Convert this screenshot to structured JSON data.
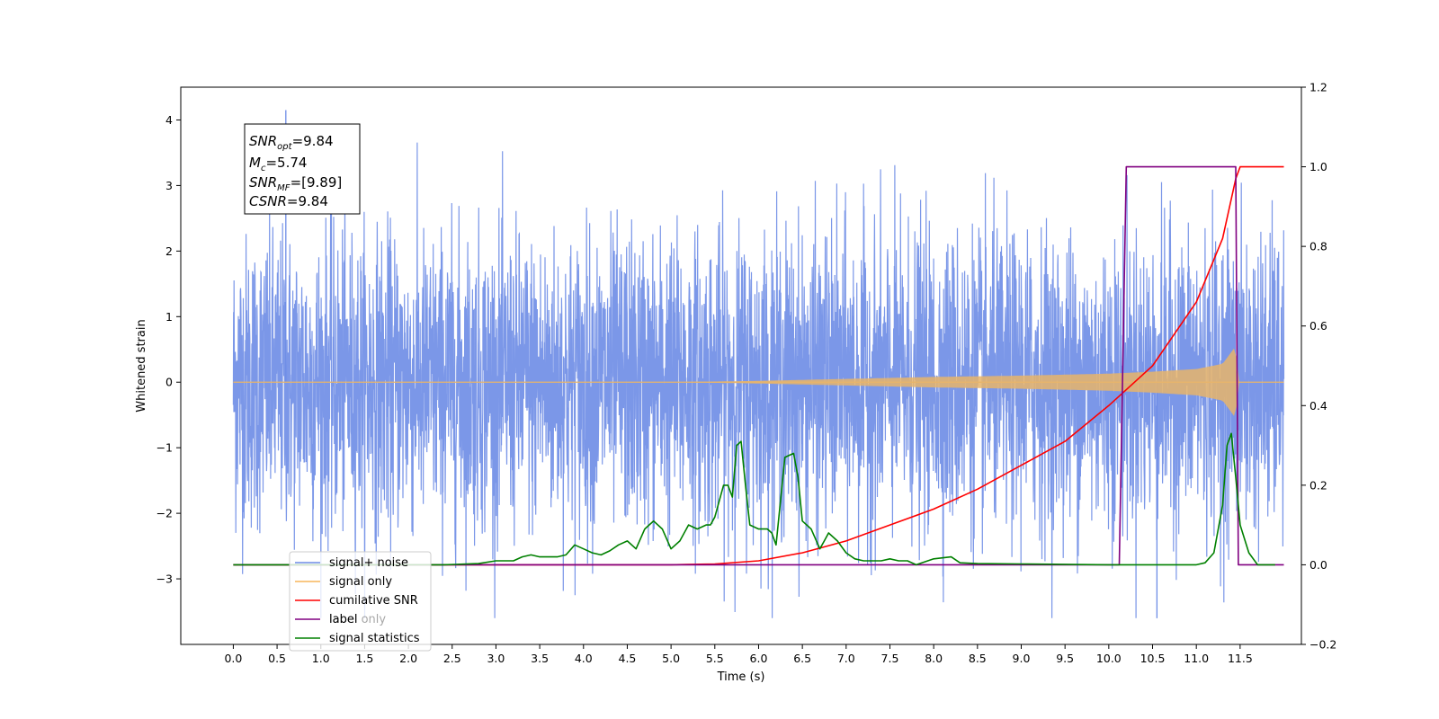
{
  "chart_data": {
    "type": "line",
    "xlabel": "Time (s)",
    "ylabel": "Whitened strain",
    "xlim": [
      -0.6,
      12.2
    ],
    "ylim": [
      -4.0,
      4.5
    ],
    "y2lim": [
      -0.2,
      1.2
    ],
    "xticks": [
      0.0,
      0.5,
      1.0,
      1.5,
      2.0,
      2.5,
      3.0,
      3.5,
      4.0,
      4.5,
      5.0,
      5.5,
      6.0,
      6.5,
      7.0,
      7.5,
      8.0,
      8.5,
      9.0,
      9.5,
      10.0,
      10.5,
      11.0,
      11.5
    ],
    "xtick_labels": [
      "0.0",
      "0.5",
      "1.0",
      "1.5",
      "2.0",
      "2.5",
      "3.0",
      "3.5",
      "4.0",
      "4.5",
      "5.0",
      "5.5",
      "6.0",
      "6.5",
      "7.0",
      "7.5",
      "8.0",
      "8.5",
      "9.0",
      "9.5",
      "10.0",
      "10.5",
      "11.0",
      "11.5"
    ],
    "yticks": [
      -3,
      -2,
      -1,
      0,
      1,
      2,
      3,
      4
    ],
    "ytick_labels": [
      "−3",
      "−2",
      "−1",
      "0",
      "1",
      "2",
      "3",
      "4"
    ],
    "y2ticks": [
      -0.2,
      0.0,
      0.2,
      0.4,
      0.6,
      0.8,
      1.0,
      1.2
    ],
    "y2tick_labels": [
      "−0.2",
      "0.0",
      "0.2",
      "0.4",
      "0.6",
      "0.8",
      "1.0",
      "1.2"
    ],
    "annotation": {
      "lines": [
        {
          "base": "SNR",
          "sub": "opt",
          "rest": "=9.84"
        },
        {
          "base": "M",
          "sub": "c",
          "rest": "=5.74"
        },
        {
          "base": "SNR",
          "sub": "MF",
          "rest": "=[9.89]"
        },
        {
          "base": "CSNR",
          "sub": "",
          "rest": "=9.84"
        }
      ]
    },
    "legend": {
      "location": "lower-left",
      "entries": [
        {
          "label": "signal+ noise",
          "color": "#6d8ce6"
        },
        {
          "label": "signal only",
          "color": "#f7b55a"
        },
        {
          "label": "cumilative SNR",
          "color": "#ff0000"
        },
        {
          "label": "label",
          "color": "#800080"
        },
        {
          "label": "label only",
          "color": "#800080"
        },
        {
          "label": "signal statistics",
          "color": "#008000"
        }
      ]
    },
    "series": [
      {
        "name": "signal+ noise",
        "axis": "left",
        "color": "#6d8ce6",
        "kind": "noise-band",
        "x_range": [
          0.0,
          12.0
        ],
        "typical_envelope": [
          -1.8,
          1.8
        ],
        "min": -3.6,
        "max": 4.15
      },
      {
        "name": "signal only",
        "axis": "left",
        "color": "#e8b46a",
        "kind": "chirp-envelope",
        "x": [
          0.0,
          5.0,
          6.0,
          7.0,
          8.0,
          9.0,
          10.0,
          10.5,
          11.0,
          11.3,
          11.45,
          11.48,
          12.0
        ],
        "amplitude": [
          0.0,
          0.0,
          0.02,
          0.05,
          0.08,
          0.1,
          0.13,
          0.16,
          0.2,
          0.28,
          0.55,
          0.0,
          0.0
        ]
      },
      {
        "name": "cumilative SNR",
        "axis": "right",
        "color": "#ff0000",
        "x": [
          0.0,
          5.0,
          5.5,
          6.0,
          6.5,
          7.0,
          7.5,
          8.0,
          8.5,
          9.0,
          9.5,
          10.0,
          10.5,
          11.0,
          11.3,
          11.45,
          11.5,
          12.0
        ],
        "values": [
          0.0,
          0.0,
          0.002,
          0.01,
          0.03,
          0.06,
          0.1,
          0.14,
          0.19,
          0.25,
          0.31,
          0.4,
          0.5,
          0.66,
          0.82,
          0.97,
          1.0,
          1.0
        ]
      },
      {
        "name": "label",
        "axis": "right",
        "color": "#800080",
        "x": [
          0.0,
          10.12,
          10.2,
          11.45,
          11.48,
          12.0
        ],
        "values": [
          0.0,
          0.0,
          1.0,
          1.0,
          0.0,
          0.0
        ]
      },
      {
        "name": "signal statistics",
        "axis": "right",
        "color": "#008000",
        "x": [
          0.0,
          2.4,
          2.8,
          3.0,
          3.2,
          3.3,
          3.4,
          3.5,
          3.6,
          3.7,
          3.8,
          3.9,
          4.0,
          4.1,
          4.2,
          4.3,
          4.4,
          4.5,
          4.6,
          4.7,
          4.75,
          4.8,
          4.9,
          5.0,
          5.1,
          5.2,
          5.3,
          5.4,
          5.45,
          5.5,
          5.6,
          5.65,
          5.7,
          5.75,
          5.8,
          5.85,
          5.9,
          6.0,
          6.1,
          6.15,
          6.2,
          6.3,
          6.4,
          6.45,
          6.5,
          6.6,
          6.7,
          6.75,
          6.8,
          6.9,
          7.0,
          7.1,
          7.2,
          7.4,
          7.5,
          7.6,
          7.7,
          7.8,
          8.0,
          8.2,
          8.3,
          8.5,
          9.0,
          10.0,
          11.0,
          11.1,
          11.2,
          11.3,
          11.35,
          11.4,
          11.45,
          11.5,
          11.6,
          11.7,
          11.8,
          11.9
        ],
        "values": [
          0.0,
          0.0,
          0.003,
          0.01,
          0.01,
          0.02,
          0.025,
          0.02,
          0.02,
          0.02,
          0.025,
          0.05,
          0.04,
          0.03,
          0.025,
          0.035,
          0.05,
          0.06,
          0.04,
          0.09,
          0.1,
          0.11,
          0.09,
          0.04,
          0.06,
          0.1,
          0.09,
          0.1,
          0.1,
          0.12,
          0.2,
          0.2,
          0.17,
          0.3,
          0.31,
          0.2,
          0.1,
          0.09,
          0.09,
          0.08,
          0.05,
          0.27,
          0.28,
          0.22,
          0.11,
          0.09,
          0.04,
          0.06,
          0.08,
          0.06,
          0.03,
          0.015,
          0.01,
          0.01,
          0.015,
          0.01,
          0.01,
          0.0,
          0.015,
          0.02,
          0.005,
          0.003,
          0.002,
          0.0,
          0.0,
          0.005,
          0.03,
          0.15,
          0.3,
          0.33,
          0.22,
          0.1,
          0.03,
          0.0,
          0.0,
          0.0
        ]
      }
    ]
  }
}
